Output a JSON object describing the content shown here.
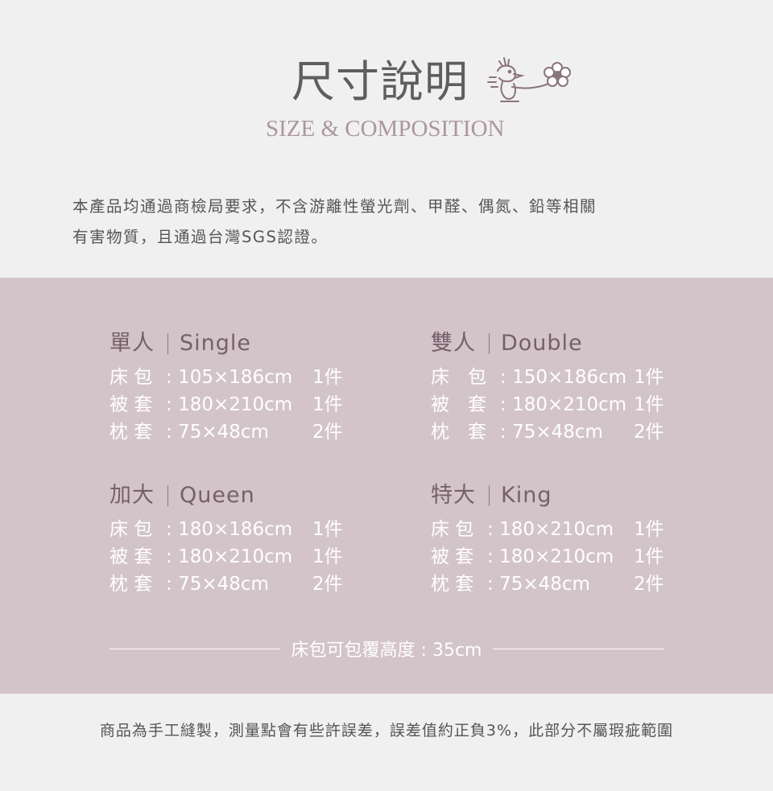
{
  "header": {
    "title": "尺寸說明",
    "subtitle": "SIZE & COMPOSITION",
    "icon": "woodstock-with-flower-icon"
  },
  "intro": {
    "line1": "本產品均通過商檢局要求，不含游離性螢光劑、甲醛、偶氮、鉛等相關",
    "line2": "有害物質，且通過台灣SGS認證。"
  },
  "colors": {
    "background": "#f0f0f0",
    "band": "#d3c4ca",
    "heading": "#76606a",
    "text": "#ffffff"
  },
  "sizes": [
    {
      "zh": "單人",
      "en": "Single",
      "rows": [
        {
          "label": "床 包",
          "dim": "105×186cm",
          "qty": "1件"
        },
        {
          "label": "被 套",
          "dim": "180×210cm",
          "qty": "1件"
        },
        {
          "label": "枕 套",
          "dim": "75×48cm",
          "qty": "2件"
        }
      ]
    },
    {
      "zh": "雙人",
      "en": "Double",
      "rows": [
        {
          "label": "床　包",
          "dim": "150×186cm",
          "qty": "1件"
        },
        {
          "label": "被　套",
          "dim": "180×210cm",
          "qty": "1件"
        },
        {
          "label": "枕　套",
          "dim": "75×48cm",
          "qty": "2件"
        }
      ]
    },
    {
      "zh": "加大",
      "en": "Queen",
      "rows": [
        {
          "label": "床 包",
          "dim": "180×186cm",
          "qty": "1件"
        },
        {
          "label": "被 套",
          "dim": "180×210cm",
          "qty": "1件"
        },
        {
          "label": "枕 套",
          "dim": "75×48cm",
          "qty": "2件"
        }
      ]
    },
    {
      "zh": "特大",
      "en": "King",
      "rows": [
        {
          "label": "床 包",
          "dim": "180×210cm",
          "qty": "1件"
        },
        {
          "label": "被 套",
          "dim": "180×210cm",
          "qty": "1件"
        },
        {
          "label": "枕 套",
          "dim": "75×48cm",
          "qty": "2件"
        }
      ]
    }
  ],
  "footer_note": "床包可包覆高度 : 35cm",
  "bottom_note": "商品為手工縫製，測量點會有些許誤差，誤差值約正負3%，此部分不屬瑕疵範圍"
}
